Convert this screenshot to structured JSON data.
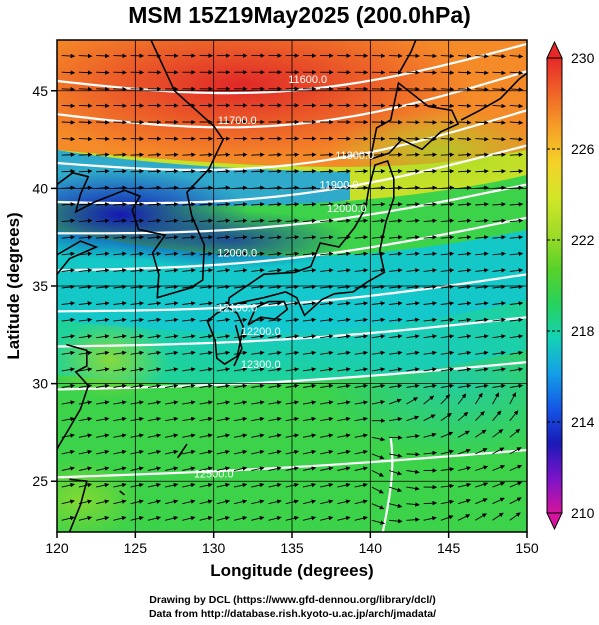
{
  "title": "MSM 15Z19May2025 (200.0hPa)",
  "x_axis": {
    "label": "Longitude (degrees)",
    "range": [
      120,
      150
    ],
    "ticks": [
      "120",
      "125",
      "130",
      "135",
      "140",
      "145",
      "150"
    ]
  },
  "y_axis": {
    "label": "Latitude  (degrees)",
    "range": [
      22.4,
      47.6
    ],
    "ticks": [
      "25",
      "30",
      "35",
      "40",
      "45"
    ]
  },
  "colorbar": {
    "range": [
      210,
      230
    ],
    "ticks": [
      "230",
      "226",
      "222",
      "218",
      "214",
      "210"
    ]
  },
  "contour_labels": [
    {
      "text": "11600.0",
      "lon": 136.0,
      "lat": 45.4
    },
    {
      "text": "11700.0",
      "lon": 131.5,
      "lat": 43.3
    },
    {
      "text": "11800.0",
      "lon": 139.0,
      "lat": 41.5
    },
    {
      "text": "11900.0",
      "lon": 138.0,
      "lat": 40.0
    },
    {
      "text": "12000.0",
      "lon": 138.5,
      "lat": 38.8
    },
    {
      "text": "12000.0",
      "lon": 131.5,
      "lat": 36.5
    },
    {
      "text": "12100.0",
      "lon": 131.5,
      "lat": 33.7
    },
    {
      "text": "12200.0",
      "lon": 133.0,
      "lat": 32.5
    },
    {
      "text": "12300.0",
      "lon": 133.0,
      "lat": 30.8
    },
    {
      "text": "12500.0",
      "lon": 130.0,
      "lat": 25.2
    }
  ],
  "credits": {
    "line1": "Drawing by DCL (https://www.gfd-dennou.org/library/dcl/)",
    "line2": "Data from http://database.rish.kyoto-u.ac.jp/arch/jmadata/"
  },
  "colors": {
    "colormap": [
      "#d4149c",
      "#7a14c8",
      "#1a1ab8",
      "#1458e6",
      "#14a0e6",
      "#14d2b4",
      "#28d25a",
      "#5ad228",
      "#a0dc28",
      "#d2e628",
      "#f5d228",
      "#f5a028",
      "#f06428",
      "#e62828"
    ],
    "contour": "#ffffff",
    "vectors": "#000000",
    "coast": "#000000"
  }
}
